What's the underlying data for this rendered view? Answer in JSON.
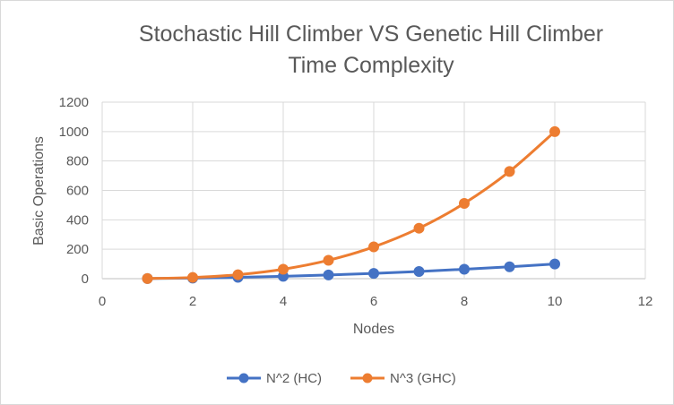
{
  "chart_data": {
    "type": "line",
    "title_lines": [
      "Stochastic Hill Climber VS Genetic Hill Climber",
      "Time Complexity"
    ],
    "xlabel": "Nodes",
    "ylabel": "Basic Operations",
    "xlim": [
      0,
      12
    ],
    "ylim": [
      0,
      1200
    ],
    "xticks": [
      0,
      2,
      4,
      6,
      8,
      10,
      12
    ],
    "yticks": [
      0,
      200,
      400,
      600,
      800,
      1000,
      1200
    ],
    "grid": true,
    "legend_position": "bottom",
    "x": [
      1,
      2,
      3,
      4,
      5,
      6,
      7,
      8,
      9,
      10
    ],
    "series": [
      {
        "name": "N^2 (HC)",
        "color": "#4472c4",
        "values": [
          1,
          4,
          9,
          16,
          25,
          36,
          49,
          64,
          81,
          100
        ]
      },
      {
        "name": "N^3 (GHC)",
        "color": "#ed7d31",
        "values": [
          1,
          8,
          27,
          64,
          125,
          216,
          343,
          512,
          729,
          1000
        ]
      }
    ]
  }
}
